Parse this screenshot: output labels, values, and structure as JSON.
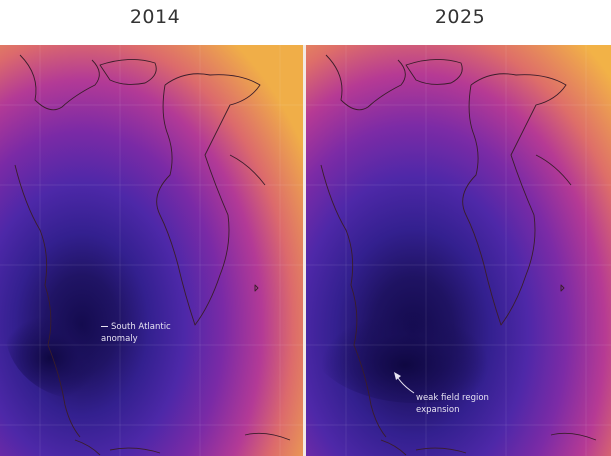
{
  "panels": [
    {
      "title": "2014",
      "annotation_line1": "South Atlantic",
      "annotation_line2": "anomaly"
    },
    {
      "title": "2025",
      "annotation_line1": "weak field region",
      "annotation_line2": "expansion"
    }
  ],
  "colors": {
    "strong_field": "#efaa46",
    "mid_field": "#b02f9a",
    "weak_field": "#4a27a0",
    "weakest_field": "#1a0f5a",
    "coastline": "#3a1d2a",
    "annotation_text": "#e8e4f3"
  }
}
